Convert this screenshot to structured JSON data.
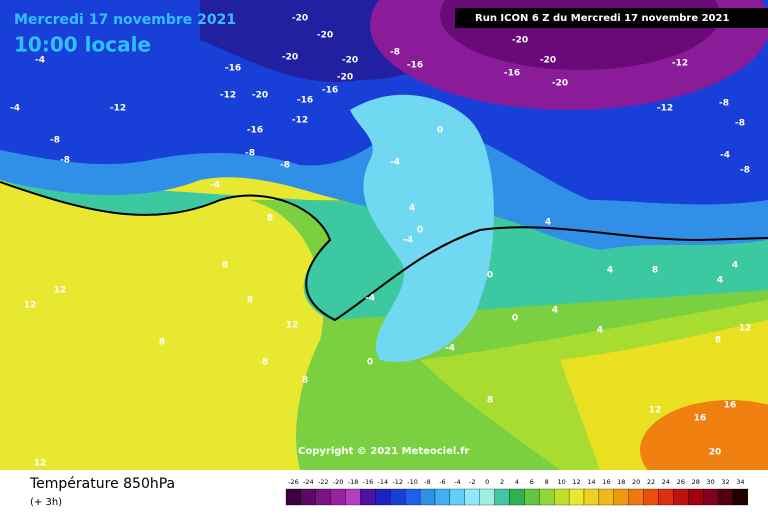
{
  "header": {
    "date": "Mercredi 17 novembre 2021",
    "time": "10:00 locale",
    "run": "Run ICON 6 Z du Mercredi 17 novembre 2021"
  },
  "map": {
    "labels": [
      -4,
      -4,
      -8,
      -8,
      -12,
      -16,
      -12,
      -20,
      -16,
      -12,
      -16,
      -16,
      -20,
      -20,
      -20,
      -20,
      -20,
      -8,
      -16,
      -16,
      -20,
      -20,
      -20,
      -12,
      -12,
      -8,
      -8,
      -8,
      -4,
      -8,
      -8,
      -4,
      -4,
      0,
      8,
      8,
      8,
      12,
      8,
      12,
      12,
      12,
      8,
      8,
      8,
      4,
      4,
      4,
      8,
      4,
      4,
      12,
      8,
      12,
      16,
      16,
      20,
      4,
      0,
      0,
      0,
      4,
      -4,
      0,
      -4,
      -4
    ]
  },
  "copyright": "Copyright © 2021 Meteociel.fr",
  "footer": {
    "title": "Température 850hPa",
    "subtitle": "(+ 3h)"
  },
  "legend": {
    "ticks": [
      -26,
      -24,
      -22,
      -20,
      -18,
      -16,
      -14,
      -12,
      -10,
      -8,
      -6,
      -4,
      -2,
      0,
      2,
      4,
      6,
      8,
      10,
      12,
      14,
      16,
      18,
      20,
      22,
      24,
      26,
      28,
      30,
      32,
      34
    ]
  }
}
